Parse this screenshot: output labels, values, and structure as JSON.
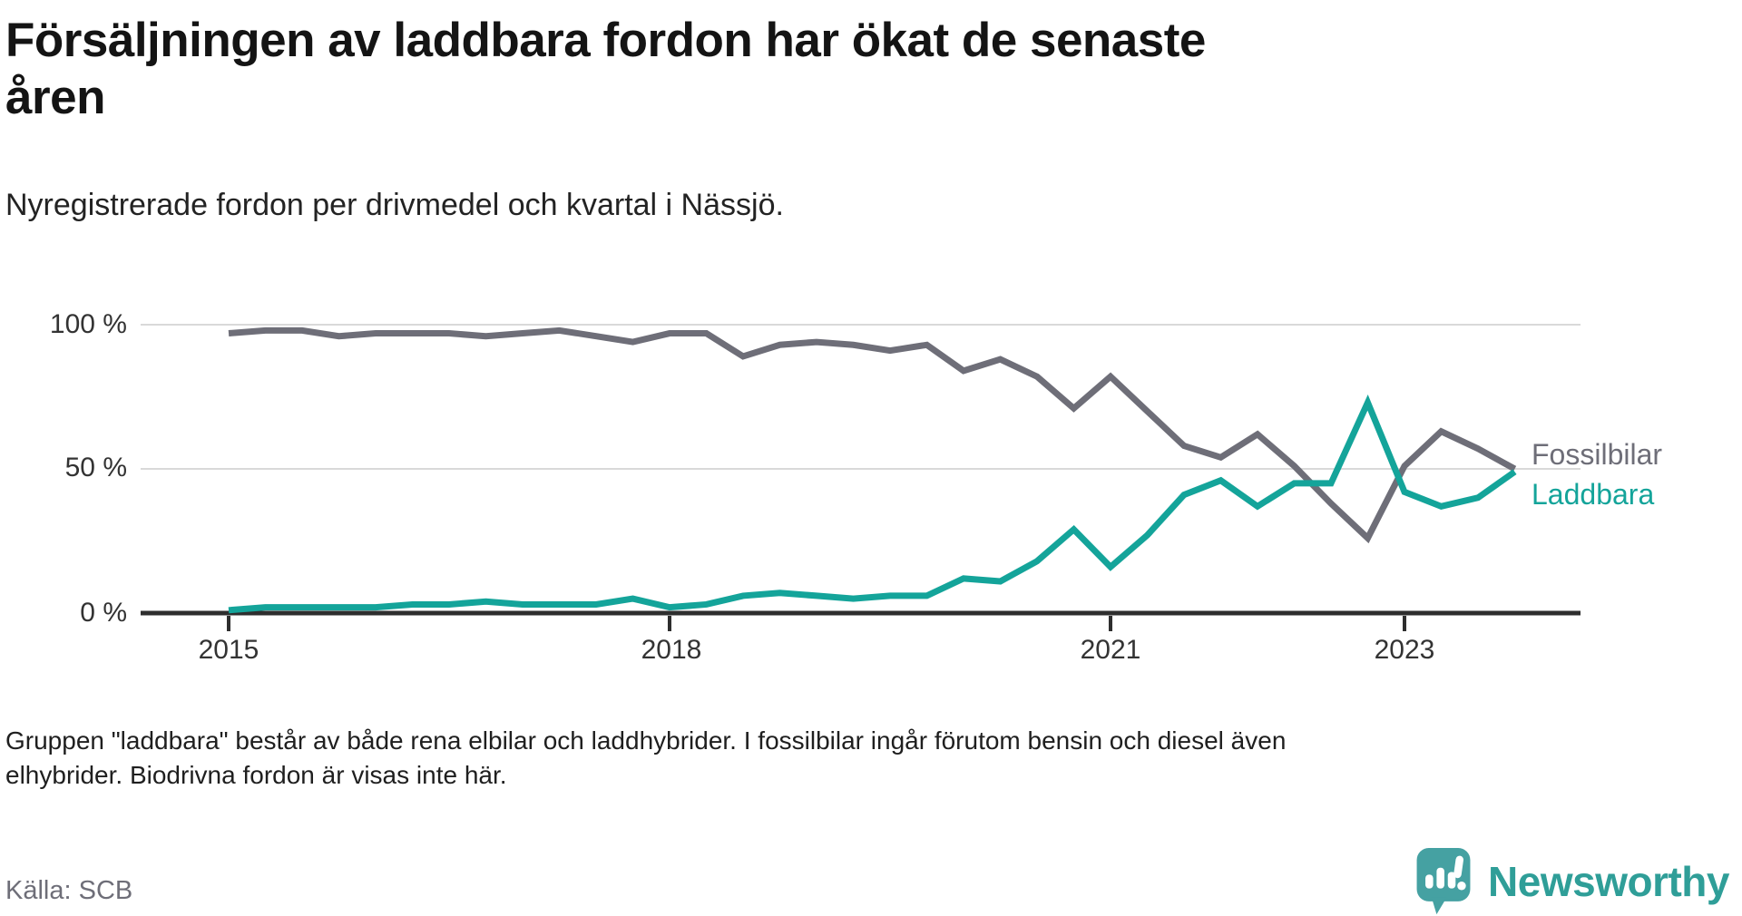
{
  "header": {
    "title": "Försäljningen av laddbara fordon har ökat de senaste\nåren",
    "subtitle": "Nyregistrerade fordon per drivmedel och kvartal i Nässjö."
  },
  "chart_data": {
    "type": "line",
    "title": "Försäljningen av laddbara fordon har ökat de senaste åren",
    "subtitle": "Nyregistrerade fordon per drivmedel och kvartal i Nässjö.",
    "x_unit": "quarter",
    "x": [
      "2015 Q1",
      "2015 Q2",
      "2015 Q3",
      "2015 Q4",
      "2016 Q1",
      "2016 Q2",
      "2016 Q3",
      "2016 Q4",
      "2017 Q1",
      "2017 Q2",
      "2017 Q3",
      "2017 Q4",
      "2018 Q1",
      "2018 Q2",
      "2018 Q3",
      "2018 Q4",
      "2019 Q1",
      "2019 Q2",
      "2019 Q3",
      "2019 Q4",
      "2020 Q1",
      "2020 Q2",
      "2020 Q3",
      "2020 Q4",
      "2021 Q1",
      "2021 Q2",
      "2021 Q3",
      "2021 Q4",
      "2022 Q1",
      "2022 Q2",
      "2022 Q3",
      "2022 Q4",
      "2023 Q1",
      "2023 Q2",
      "2023 Q3",
      "2023 Q4"
    ],
    "series": [
      {
        "name": "Fossilbilar",
        "color": "#6e6e78",
        "values": [
          97,
          98,
          98,
          96,
          97,
          97,
          97,
          96,
          97,
          98,
          96,
          94,
          97,
          97,
          89,
          93,
          94,
          93,
          91,
          93,
          84,
          88,
          82,
          71,
          82,
          70,
          58,
          54,
          62,
          51,
          38,
          26,
          51,
          63,
          57,
          50
        ]
      },
      {
        "name": "Laddbara",
        "color": "#14a49a",
        "values": [
          1,
          2,
          2,
          2,
          2,
          3,
          3,
          4,
          3,
          3,
          3,
          5,
          2,
          3,
          6,
          7,
          6,
          5,
          6,
          6,
          12,
          11,
          18,
          29,
          16,
          27,
          41,
          46,
          37,
          45,
          45,
          73,
          42,
          37,
          40,
          49
        ]
      }
    ],
    "unit": "%",
    "ylim": [
      0,
      100
    ],
    "y_tick_labels": [
      "100 %",
      "50 %",
      "0 %"
    ],
    "y_gridlines_pct": [
      100,
      50
    ],
    "x_tick_labels": [
      "2015",
      "2018",
      "2021",
      "2023"
    ],
    "x_tick_quarter_index": [
      0,
      12,
      24,
      32
    ],
    "grid": "horizontal",
    "legend_position": "right of line ends",
    "axis_color": "#2e2e2e",
    "grid_color": "#d9d9d9"
  },
  "footer": {
    "note": "Gruppen \"laddbara\" består av både rena elbilar och laddhybrider. I fossilbilar ingår förutom bensin och diesel även\nelhybrider. Biodrivna fordon är visas inte här.",
    "source": "Källa: SCB",
    "brand": "Newsworthy"
  }
}
